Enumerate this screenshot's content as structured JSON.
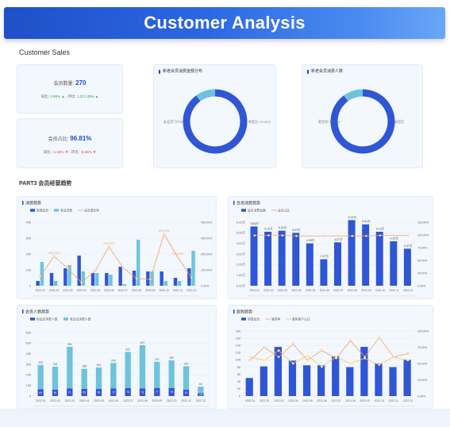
{
  "header": {
    "title": "Customer Analysis"
  },
  "section1": {
    "title": "Customer Sales"
  },
  "kpi1": {
    "label": "会员数量:",
    "value": "270",
    "left_label": "同比:",
    "left_value": "4.65%",
    "right_label": "环比:",
    "right_value": "1,371.28%"
  },
  "kpi2": {
    "label": "会员占比:",
    "value": "96.81%",
    "left_label": "同比:",
    "left_value": "-1.19%",
    "right_label": "环比:",
    "right_value": "-6.65%"
  },
  "donut1": {
    "title": "新老会员消费金额分布",
    "left_label": "老会员: 10.00%",
    "right_label": "新会员: 90.00%",
    "chart_data": {
      "type": "pie",
      "categories": [
        "新会员",
        "老会员"
      ],
      "values": [
        90,
        10
      ],
      "colors": [
        "#2f56d4",
        "#6ec3dc"
      ]
    }
  },
  "donut2": {
    "title": "新老会员消费人数",
    "left_label": "老会员: 10.00%",
    "right_label": "新会员",
    "chart_data": {
      "type": "pie",
      "categories": [
        "新会员",
        "老会员"
      ],
      "values": [
        90,
        10
      ],
      "colors": [
        "#2f56d4",
        "#6ec3dc"
      ]
    }
  },
  "section2": {
    "title": "PART3 会员经营趋势"
  },
  "chart1": {
    "title": "消费趋势",
    "legend": [
      "新增会员",
      "老会员数",
      "会员增长率"
    ],
    "chart_data": {
      "type": "bar",
      "categories": [
        "2022-01",
        "2022-02",
        "2022-03",
        "2022-04",
        "2022-05",
        "2022-06",
        "2022-07",
        "2022-08",
        "2022-09",
        "2022-10",
        "2022-11",
        "2022-12"
      ],
      "series": [
        {
          "name": "新增会员",
          "values": [
            30,
            80,
            110,
            190,
            80,
            80,
            120,
            95,
            90,
            90,
            50,
            110
          ]
        },
        {
          "name": "老会员数",
          "values": [
            150,
            30,
            130,
            90,
            80,
            70,
            10,
            290,
            90,
            30,
            30,
            220
          ]
        },
        {
          "name": "会员增长率",
          "values": [
            60,
            185,
            110,
            20,
            95,
            245,
            115,
            45,
            40,
            325,
            180,
            50
          ]
        }
      ],
      "ylim": [
        0,
        400
      ],
      "ylim_right": [
        0,
        400
      ],
      "yticks": [
        "0",
        "100",
        "200",
        "300",
        "400"
      ],
      "yticks_right": [
        "0.00%",
        "100.00%",
        "200.00%",
        "300.00%",
        "400.00%"
      ],
      "point_labels": [
        "",
        "185.22%",
        "",
        "",
        "",
        "245.57%",
        "",
        "",
        "",
        "325.45%",
        "180.97%",
        ""
      ],
      "colors": [
        "#2f56d4",
        "#6ec3dc",
        "#f5a25d"
      ]
    }
  },
  "chart2": {
    "title": "会员消费趋势",
    "legend": [
      "会员消费金额",
      "会员占比"
    ],
    "chart_data": {
      "type": "bar",
      "categories": [
        "2022-01",
        "2022-02",
        "2022-03",
        "2022-04",
        "2022-05",
        "2022-06",
        "2022-07",
        "2022-08",
        "2022-09",
        "2022-10",
        "2022-11",
        "2022-12"
      ],
      "series": [
        {
          "name": "会员消费金额",
          "values": [
            5.6,
            5.1,
            5.2,
            5.0,
            4.0,
            2.5,
            4.1,
            6.2,
            5.8,
            5.1,
            4.2,
            3.5
          ]
        },
        {
          "name": "会员占比",
          "values": [
            99,
            99,
            99,
            98,
            98,
            98,
            98,
            98,
            98,
            99,
            99,
            99
          ]
        }
      ],
      "ylim": [
        0,
        6
      ],
      "ylim_right": [
        0,
        125
      ],
      "yticks": [
        "0.00万",
        "1.00万",
        "2.00万",
        "3.00万",
        "4.00万",
        "5.00万",
        "6.00万"
      ],
      "yticks_right": [
        "0.00%",
        "25.00%",
        "50.00%",
        "75.00%",
        "100.00%",
        "125.00%"
      ],
      "bar_labels": [
        "5.56万",
        "5.10万",
        "5.21万",
        "5.02万",
        "4.05万",
        "2.47万",
        "4.07万",
        "6.21万",
        "5.81万",
        "5.12万",
        "4.20万",
        "3.47万"
      ],
      "colors": [
        "#2f56d4",
        "#f5a25d"
      ]
    }
  },
  "chart3": {
    "title": "会员人数趋势",
    "legend": [
      "新会员消费人数",
      "老会员消费人数"
    ],
    "chart_data": {
      "type": "bar",
      "categories": [
        "2022-01",
        "2022-02",
        "2022-03",
        "2022-04",
        "2022-05",
        "2022-06",
        "2022-07",
        "2022-08",
        "2022-09",
        "2022-10",
        "2022-11",
        "2022-12"
      ],
      "series": [
        {
          "name": "新会员消费人数",
          "values": [
            64,
            60,
            71,
            69,
            69,
            72,
            76,
            73,
            77,
            75,
            61,
            26
          ]
        },
        {
          "name": "老会员消费人数",
          "values": [
            229,
            218,
            394,
            188,
            201,
            240,
            341,
            407,
            247,
            262,
            220,
            63
          ]
        }
      ],
      "ylim": [
        0,
        600
      ],
      "yticks": [
        "0",
        "100",
        "200",
        "300",
        "400",
        "500",
        "600"
      ],
      "bar_labels": [
        "229",
        "218",
        "394",
        "188",
        "201",
        "240",
        "341",
        "407",
        "247",
        "262",
        "220",
        "63"
      ],
      "colors": [
        "#2f56d4",
        "#6ec3dc"
      ]
    }
  },
  "chart4": {
    "title": "复购趋势",
    "legend": [
      "新增会员",
      "复购率",
      "复购用户占比"
    ],
    "chart_data": {
      "type": "bar",
      "categories": [
        "2022-01",
        "2022-02",
        "2022-03",
        "2022-04",
        "2022-05",
        "2022-06",
        "2022-07",
        "2022-08",
        "2022-09",
        "2022-10",
        "2022-11",
        "2022-12"
      ],
      "series": [
        {
          "name": "新增会员",
          "values": [
            50,
            82,
            136,
            98,
            85,
            85,
            110,
            80,
            136,
            90,
            80,
            100
          ]
        },
        {
          "name": "复购率",
          "values": [
            55,
            75,
            60,
            80,
            55,
            70,
            58,
            85,
            60,
            90,
            60,
            65
          ]
        },
        {
          "name": "复购用户占比",
          "values": [
            60,
            55,
            70,
            50,
            62,
            45,
            60,
            50,
            58,
            48,
            60,
            55
          ]
        }
      ],
      "ylim": [
        0,
        180
      ],
      "ylim_right": [
        0,
        100
      ],
      "yticks": [
        "0",
        "20",
        "40",
        "60",
        "80",
        "100",
        "120",
        "140",
        "160",
        "180"
      ],
      "yticks_right": [
        "0.00%",
        "25.00%",
        "50.00%",
        "75.00%",
        "100.00%"
      ],
      "colors": [
        "#2f56d4",
        "#f5a25d",
        "#f7c75a"
      ]
    }
  }
}
